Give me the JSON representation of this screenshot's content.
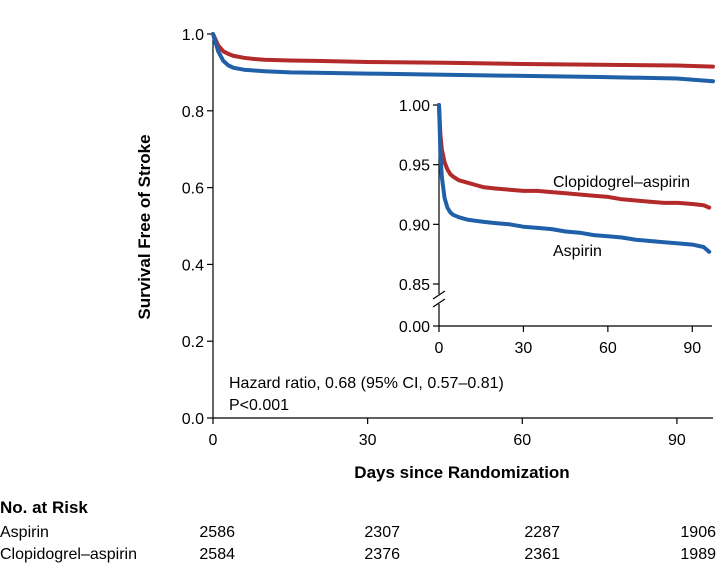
{
  "chart_data": [
    {
      "type": "line",
      "name": "main",
      "xlabel": "Days since Randomization",
      "ylabel": "Survival Free of Stroke",
      "xlim": [
        0,
        97
      ],
      "ylim": [
        0,
        1
      ],
      "xticks": [
        0,
        30,
        60,
        90
      ],
      "xtick_labels": [
        "0",
        "30",
        "60",
        "90"
      ],
      "yticks": [
        0,
        0.2,
        0.4,
        0.6,
        0.8,
        1.0
      ],
      "ytick_labels": [
        "0.0",
        "0.2",
        "0.4",
        "0.6",
        "0.8",
        "1.0"
      ],
      "series": [
        {
          "color": "#b22a2a",
          "x": [
            0,
            1,
            2,
            3,
            4,
            6,
            8,
            10,
            15,
            20,
            30,
            45,
            60,
            75,
            90,
            97
          ],
          "y": [
            1.0,
            0.97,
            0.955,
            0.948,
            0.943,
            0.938,
            0.935,
            0.933,
            0.931,
            0.93,
            0.927,
            0.925,
            0.922,
            0.92,
            0.918,
            0.915
          ]
        },
        {
          "color": "#2060a8",
          "x": [
            0,
            1,
            2,
            3,
            4,
            6,
            8,
            10,
            15,
            20,
            30,
            45,
            60,
            75,
            90,
            97
          ],
          "y": [
            1.0,
            0.955,
            0.93,
            0.918,
            0.912,
            0.907,
            0.905,
            0.903,
            0.9,
            0.899,
            0.897,
            0.894,
            0.891,
            0.888,
            0.884,
            0.877
          ]
        }
      ],
      "annotations": [
        "Hazard ratio, 0.68 (95% CI, 0.57–0.81)",
        "P<0.001"
      ]
    },
    {
      "type": "line",
      "name": "inset",
      "xlim": [
        0,
        97
      ],
      "ylim": [
        0.85,
        1.0
      ],
      "y_axis_break": true,
      "xticks": [
        0,
        30,
        60,
        90
      ],
      "xtick_labels": [
        "0",
        "30",
        "60",
        "90"
      ],
      "yticks": [
        0.85,
        0.9,
        0.95,
        1.0
      ],
      "ytick_labels": [
        "0.85",
        "0.90",
        "0.95",
        "1.00"
      ],
      "ybreak_label": "0.00",
      "series": [
        {
          "name": "Clopidogrel–aspirin",
          "color": "#b22a2a",
          "x": [
            0,
            0.5,
            1,
            2,
            3,
            4,
            5,
            7,
            10,
            13,
            16,
            20,
            25,
            30,
            35,
            40,
            45,
            50,
            55,
            60,
            65,
            70,
            75,
            80,
            85,
            90,
            94,
            96
          ],
          "y": [
            1.0,
            0.975,
            0.963,
            0.952,
            0.946,
            0.942,
            0.94,
            0.937,
            0.935,
            0.933,
            0.931,
            0.93,
            0.929,
            0.928,
            0.928,
            0.927,
            0.926,
            0.925,
            0.924,
            0.923,
            0.921,
            0.92,
            0.919,
            0.918,
            0.918,
            0.917,
            0.916,
            0.914
          ]
        },
        {
          "name": "Aspirin",
          "color": "#2060a8",
          "x": [
            0,
            0.5,
            1,
            2,
            3,
            4,
            5,
            7,
            10,
            13,
            16,
            20,
            25,
            30,
            35,
            40,
            45,
            50,
            55,
            60,
            65,
            70,
            75,
            80,
            85,
            90,
            94,
            96
          ],
          "y": [
            1.0,
            0.96,
            0.94,
            0.922,
            0.914,
            0.91,
            0.908,
            0.906,
            0.904,
            0.903,
            0.902,
            0.901,
            0.9,
            0.898,
            0.897,
            0.896,
            0.894,
            0.893,
            0.891,
            0.89,
            0.889,
            0.887,
            0.886,
            0.885,
            0.884,
            0.883,
            0.881,
            0.877
          ]
        }
      ]
    }
  ],
  "risk_table": {
    "title": "No. at Risk",
    "rows": [
      {
        "label": "Aspirin",
        "values": [
          "2586",
          "2307",
          "2287",
          "1906"
        ]
      },
      {
        "label": "Clopidogrel–aspirin",
        "values": [
          "2584",
          "2376",
          "2361",
          "1989"
        ]
      }
    ]
  }
}
